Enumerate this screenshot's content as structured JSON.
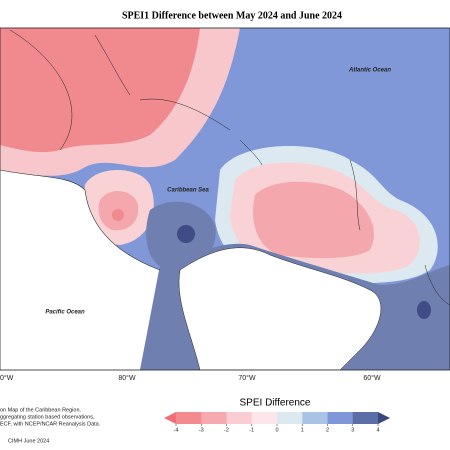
{
  "title": "SPEI1 Difference between May 2024 and June 2024",
  "map_labels": {
    "atlantic": "Atlantic Ocean",
    "caribbean": "Caribbean Sea",
    "pacific": "Pacific Ocean"
  },
  "lon_labels": [
    "0°W",
    "80°W",
    "70°W",
    "60°W"
  ],
  "notes": [
    "on Map of the Caribbean Region.",
    "ggregating station based observations,",
    "ECF, with NCEP/NCAR Reanalysis Data."
  ],
  "credit": "CIMH June 2024",
  "legend": {
    "title": "SPEI Difference",
    "ticks": [
      -4,
      -3,
      -2,
      -1,
      0,
      1,
      2,
      3,
      4
    ],
    "low_color": "#ee6f78",
    "colors": [
      "#f28a90",
      "#f6aab0",
      "#f9cdd1",
      "#fce6e9",
      "#dde9f0",
      "#aac2e6",
      "#7f96d8",
      "#5b6ea8"
    ],
    "high_color": "#3a467e"
  }
}
